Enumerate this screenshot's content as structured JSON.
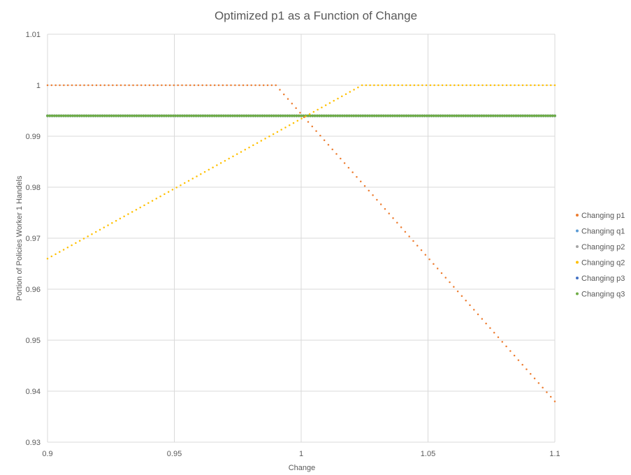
{
  "chart_data": {
    "type": "scatter",
    "title": "Optimized p1 as a Function of Change",
    "xlabel": "Change",
    "ylabel": "Portion of Policies Worker 1 Handels",
    "xlim": [
      0.9,
      1.1
    ],
    "ylim": [
      0.93,
      1.01
    ],
    "xticks": [
      0.9,
      0.95,
      1,
      1.05,
      1.1
    ],
    "yticks": [
      0.93,
      0.94,
      0.95,
      0.96,
      0.97,
      0.98,
      0.99,
      1,
      1.01
    ],
    "xtick_labels": [
      "0.9",
      "0.95",
      "1",
      "1.05",
      "1.1"
    ],
    "ytick_labels": [
      "0.93",
      "0.94",
      "0.95",
      "0.96",
      "0.97",
      "0.98",
      "0.99",
      "1",
      "1.01"
    ],
    "grid": true,
    "legend_position": "right",
    "series": [
      {
        "name": "Changing p1",
        "color": "#ED7D31",
        "points": [
          [
            0.9,
            1.0
          ],
          [
            0.99,
            1.0
          ],
          [
            1.1,
            0.938
          ]
        ]
      },
      {
        "name": "Changing q1",
        "color": "#5B9BD5",
        "points": [
          [
            0.9,
            0.994
          ],
          [
            1.1,
            0.994
          ]
        ]
      },
      {
        "name": "Changing p2",
        "color": "#A5A5A5",
        "points": [
          [
            0.9,
            0.994
          ],
          [
            1.1,
            0.994
          ]
        ]
      },
      {
        "name": "Changing q2",
        "color": "#FFC000",
        "points": [
          [
            0.9,
            0.966
          ],
          [
            1.024,
            1.0
          ],
          [
            1.1,
            1.0
          ]
        ]
      },
      {
        "name": "Changing p3",
        "color": "#4472C4",
        "points": [
          [
            0.9,
            0.994
          ],
          [
            1.1,
            0.994
          ]
        ]
      },
      {
        "name": "Changing q3",
        "color": "#70AD47",
        "points": [
          [
            0.9,
            0.994
          ],
          [
            1.1,
            0.994
          ]
        ]
      }
    ]
  }
}
